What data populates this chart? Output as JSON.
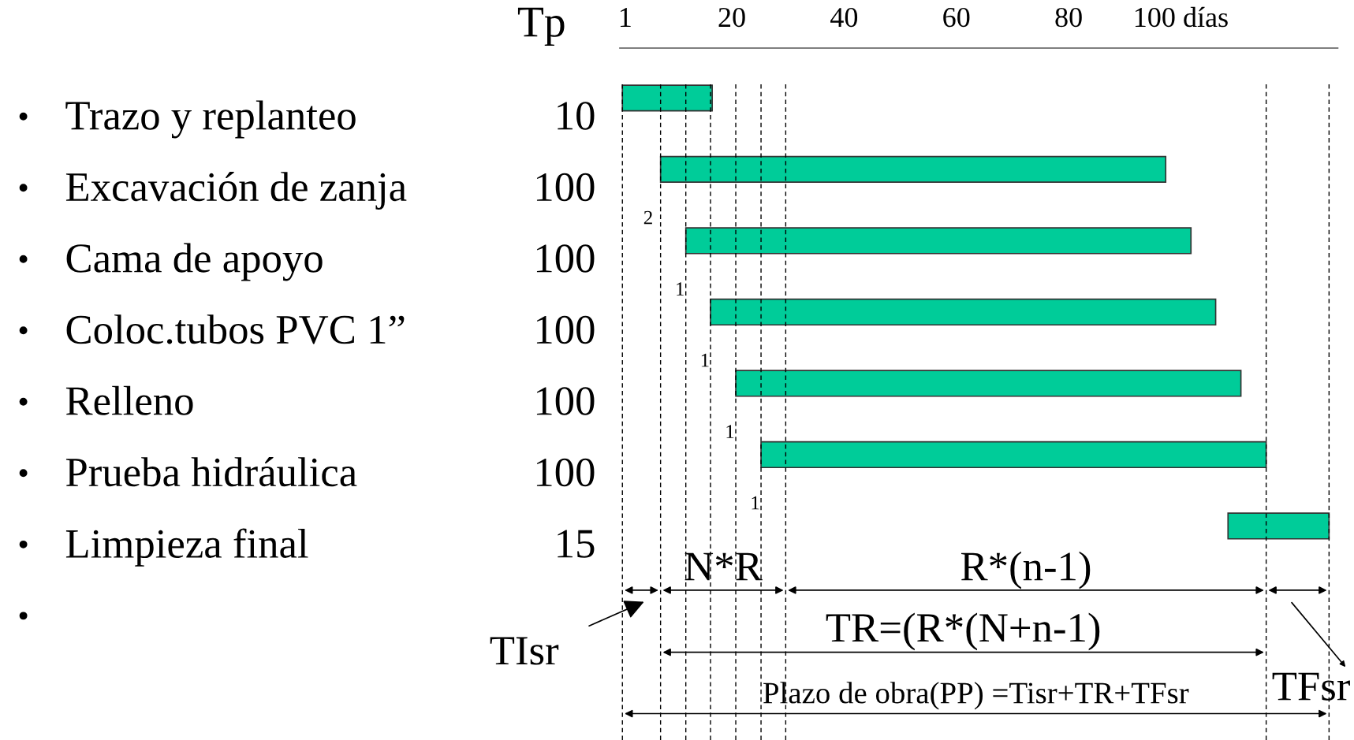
{
  "chart_data": {
    "type": "bar",
    "orientation": "horizontal",
    "categories": [
      "Trazo y replanteo",
      "Excavación de zanja",
      "Cama de apoyo",
      "Coloc.tubos PVC 1”",
      "Relleno",
      "Prueba hidráulica",
      "Limpieza final"
    ],
    "base": [
      0.5,
      7.3,
      11.8,
      16.2,
      20.7,
      25.2,
      108.4
    ],
    "values": [
      16,
      90,
      90,
      90,
      90,
      90,
      18
    ],
    "color": "#00cc99",
    "xlim": [
      0,
      128
    ],
    "xticks": [
      1,
      20,
      40,
      60,
      80,
      {
        "value": 100,
        "label": "100 días"
      }
    ],
    "ref_lines": [
      {
        "axis": "x",
        "value": 0.5,
        "line_style": "dashed"
      },
      {
        "axis": "x",
        "value": 7.3,
        "line_style": "dashed"
      },
      {
        "axis": "x",
        "value": 11.8,
        "line_style": "dashed"
      },
      {
        "axis": "x",
        "value": 16.2,
        "line_style": "dashed"
      },
      {
        "axis": "x",
        "value": 20.7,
        "line_style": "dashed"
      },
      {
        "axis": "x",
        "value": 25.2,
        "line_style": "dashed"
      },
      {
        "axis": "x",
        "value": 29.6,
        "line_style": "dashed"
      },
      {
        "axis": "x",
        "value": 115.2,
        "line_style": "dashed"
      },
      {
        "axis": "x",
        "value": 126.4,
        "line_style": "dashed"
      }
    ],
    "annotations": [
      "Tp",
      "10",
      "100",
      "100",
      "100",
      "100",
      "100",
      "15",
      "•",
      "•",
      "•",
      "•",
      "•",
      "•",
      "•",
      "•",
      "2",
      "1",
      "1",
      "1",
      "1",
      "N*R",
      "R*(n-1)",
      "TR=(R*(N+n-1)",
      "Plazo de obra(PP) =Tisr+TR+TFsr",
      "TIsr",
      "TFsr"
    ],
    "grid": false,
    "legend": false
  }
}
